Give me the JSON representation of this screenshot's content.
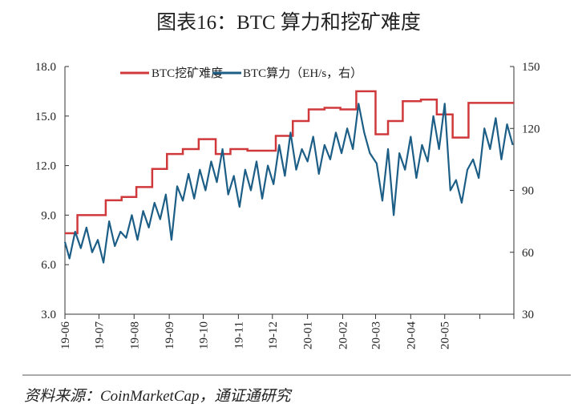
{
  "title": "图表16：BTC 算力和挖矿难度",
  "source": "资料来源：CoinMarketCap，通证通研究",
  "chart_data": {
    "type": "line",
    "title": "图表16：BTC 算力和挖矿难度",
    "x_ticks": [
      "19-06",
      "19-07",
      "19-08",
      "19-09",
      "19-10",
      "19-11",
      "19-12",
      "20-01",
      "20-02",
      "20-03",
      "20-04",
      "20-05"
    ],
    "xlim": [
      "2019-06-01",
      "2020-07-01"
    ],
    "y_left": {
      "ticks": [
        "3.0",
        "6.0",
        "9.0",
        "12.0",
        "15.0",
        "18.0"
      ],
      "lim": [
        3,
        18
      ]
    },
    "y_right": {
      "ticks": [
        "30",
        "60",
        "90",
        "120",
        "150"
      ],
      "lim": [
        30,
        150
      ]
    },
    "grid": false,
    "legend_placement": "top",
    "colors": {
      "difficulty": "#d0393b",
      "hashrate": "#1c5e86"
    },
    "series": [
      {
        "name": "BTC挖矿难度",
        "axis": "left",
        "step": true,
        "points": [
          [
            "2019-06-01",
            7.9
          ],
          [
            "2019-06-12",
            9.0
          ],
          [
            "2019-07-07",
            9.9
          ],
          [
            "2019-07-21",
            10.1
          ],
          [
            "2019-08-03",
            10.7
          ],
          [
            "2019-08-17",
            11.8
          ],
          [
            "2019-08-30",
            12.7
          ],
          [
            "2019-09-13",
            13.0
          ],
          [
            "2019-09-27",
            13.6
          ],
          [
            "2019-10-12",
            12.7
          ],
          [
            "2019-10-25",
            13.0
          ],
          [
            "2019-11-09",
            12.9
          ],
          [
            "2019-12-04",
            13.8
          ],
          [
            "2019-12-19",
            14.7
          ],
          [
            "2020-01-02",
            15.4
          ],
          [
            "2020-01-16",
            15.5
          ],
          [
            "2020-01-30",
            15.4
          ],
          [
            "2020-02-13",
            16.5
          ],
          [
            "2020-03-01",
            13.9
          ],
          [
            "2020-03-12",
            14.7
          ],
          [
            "2020-03-25",
            15.9
          ],
          [
            "2020-04-10",
            16.0
          ],
          [
            "2020-04-24",
            15.1
          ],
          [
            "2020-05-08",
            13.7
          ],
          [
            "2020-05-22",
            15.8
          ],
          [
            "2020-06-30",
            15.8
          ]
        ]
      },
      {
        "name": "BTC算力（EH/s，右）",
        "axis": "right",
        "points": [
          [
            "2019-06-01",
            65
          ],
          [
            "2019-06-05",
            57
          ],
          [
            "2019-06-10",
            70
          ],
          [
            "2019-06-15",
            62
          ],
          [
            "2019-06-20",
            72
          ],
          [
            "2019-06-25",
            60
          ],
          [
            "2019-06-30",
            66
          ],
          [
            "2019-07-05",
            55
          ],
          [
            "2019-07-10",
            75
          ],
          [
            "2019-07-15",
            63
          ],
          [
            "2019-07-20",
            70
          ],
          [
            "2019-07-25",
            67
          ],
          [
            "2019-07-30",
            78
          ],
          [
            "2019-08-04",
            66
          ],
          [
            "2019-08-09",
            80
          ],
          [
            "2019-08-14",
            72
          ],
          [
            "2019-08-19",
            84
          ],
          [
            "2019-08-24",
            76
          ],
          [
            "2019-08-29",
            88
          ],
          [
            "2019-09-03",
            66
          ],
          [
            "2019-09-08",
            92
          ],
          [
            "2019-09-13",
            85
          ],
          [
            "2019-09-18",
            98
          ],
          [
            "2019-09-23",
            86
          ],
          [
            "2019-09-28",
            100
          ],
          [
            "2019-10-03",
            90
          ],
          [
            "2019-10-08",
            104
          ],
          [
            "2019-10-13",
            94
          ],
          [
            "2019-10-18",
            110
          ],
          [
            "2019-10-23",
            88
          ],
          [
            "2019-10-28",
            97
          ],
          [
            "2019-11-02",
            82
          ],
          [
            "2019-11-07",
            100
          ],
          [
            "2019-11-12",
            90
          ],
          [
            "2019-11-17",
            104
          ],
          [
            "2019-11-22",
            86
          ],
          [
            "2019-11-27",
            102
          ],
          [
            "2019-12-02",
            93
          ],
          [
            "2019-12-07",
            112
          ],
          [
            "2019-12-12",
            97
          ],
          [
            "2019-12-17",
            118
          ],
          [
            "2019-12-22",
            100
          ],
          [
            "2019-12-27",
            110
          ],
          [
            "2020-01-01",
            104
          ],
          [
            "2020-01-06",
            116
          ],
          [
            "2020-01-11",
            98
          ],
          [
            "2020-01-16",
            112
          ],
          [
            "2020-01-21",
            105
          ],
          [
            "2020-01-26",
            118
          ],
          [
            "2020-01-31",
            108
          ],
          [
            "2020-02-05",
            120
          ],
          [
            "2020-02-10",
            110
          ],
          [
            "2020-02-15",
            132
          ],
          [
            "2020-02-20",
            118
          ],
          [
            "2020-02-25",
            108
          ],
          [
            "2020-03-02",
            103
          ],
          [
            "2020-03-07",
            85
          ],
          [
            "2020-03-12",
            110
          ],
          [
            "2020-03-17",
            78
          ],
          [
            "2020-03-22",
            108
          ],
          [
            "2020-03-27",
            100
          ],
          [
            "2020-04-01",
            116
          ],
          [
            "2020-04-06",
            96
          ],
          [
            "2020-04-11",
            112
          ],
          [
            "2020-04-16",
            104
          ],
          [
            "2020-04-21",
            126
          ],
          [
            "2020-04-26",
            110
          ],
          [
            "2020-05-01",
            132
          ],
          [
            "2020-05-06",
            90
          ],
          [
            "2020-05-11",
            95
          ],
          [
            "2020-05-16",
            84
          ],
          [
            "2020-05-21",
            100
          ],
          [
            "2020-05-26",
            105
          ],
          [
            "2020-05-31",
            96
          ],
          [
            "2020-06-05",
            120
          ],
          [
            "2020-06-10",
            110
          ],
          [
            "2020-06-15",
            125
          ],
          [
            "2020-06-20",
            105
          ],
          [
            "2020-06-25",
            122
          ],
          [
            "2020-06-30",
            112
          ]
        ]
      }
    ]
  }
}
